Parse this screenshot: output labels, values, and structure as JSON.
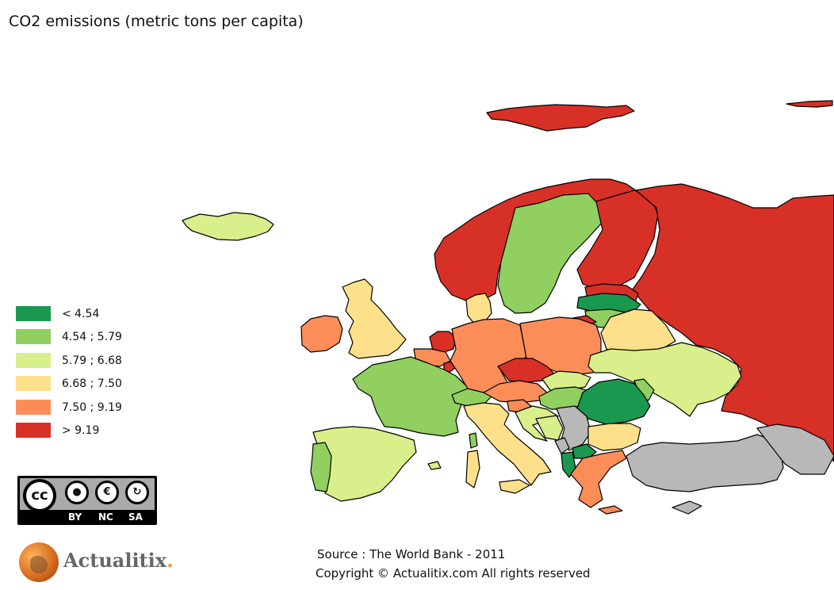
{
  "title": "CO2 emissions (metric tons per capita)",
  "colors": {
    "c1": "#1a9850",
    "c2": "#91cf60",
    "c3": "#d9ef8b",
    "c4": "#fee08b",
    "c5": "#fc8d59",
    "c6": "#d73027",
    "nodata": "#b8b8b8",
    "sea": "#ffffff"
  },
  "legend": [
    {
      "label": "< 4.54",
      "color": "#1a9850"
    },
    {
      "label": "4.54 ; 5.79",
      "color": "#91cf60"
    },
    {
      "label": "5.79 ; 6.68",
      "color": "#d9ef8b"
    },
    {
      "label": "6.68 ; 7.50",
      "color": "#fee08b"
    },
    {
      "label": "7.50 ; 9.19",
      "color": "#fc8d59"
    },
    {
      "label": "> 9.19",
      "color": "#d73027"
    }
  ],
  "license": {
    "cc": "cc",
    "by": "BY",
    "nc": "NC",
    "sa": "SA"
  },
  "brand": {
    "name": "Actualitix",
    "dot": "."
  },
  "source": "Source : The World Bank - 2011",
  "copyright": "Copyright © Actualitix.com All rights reserved"
}
